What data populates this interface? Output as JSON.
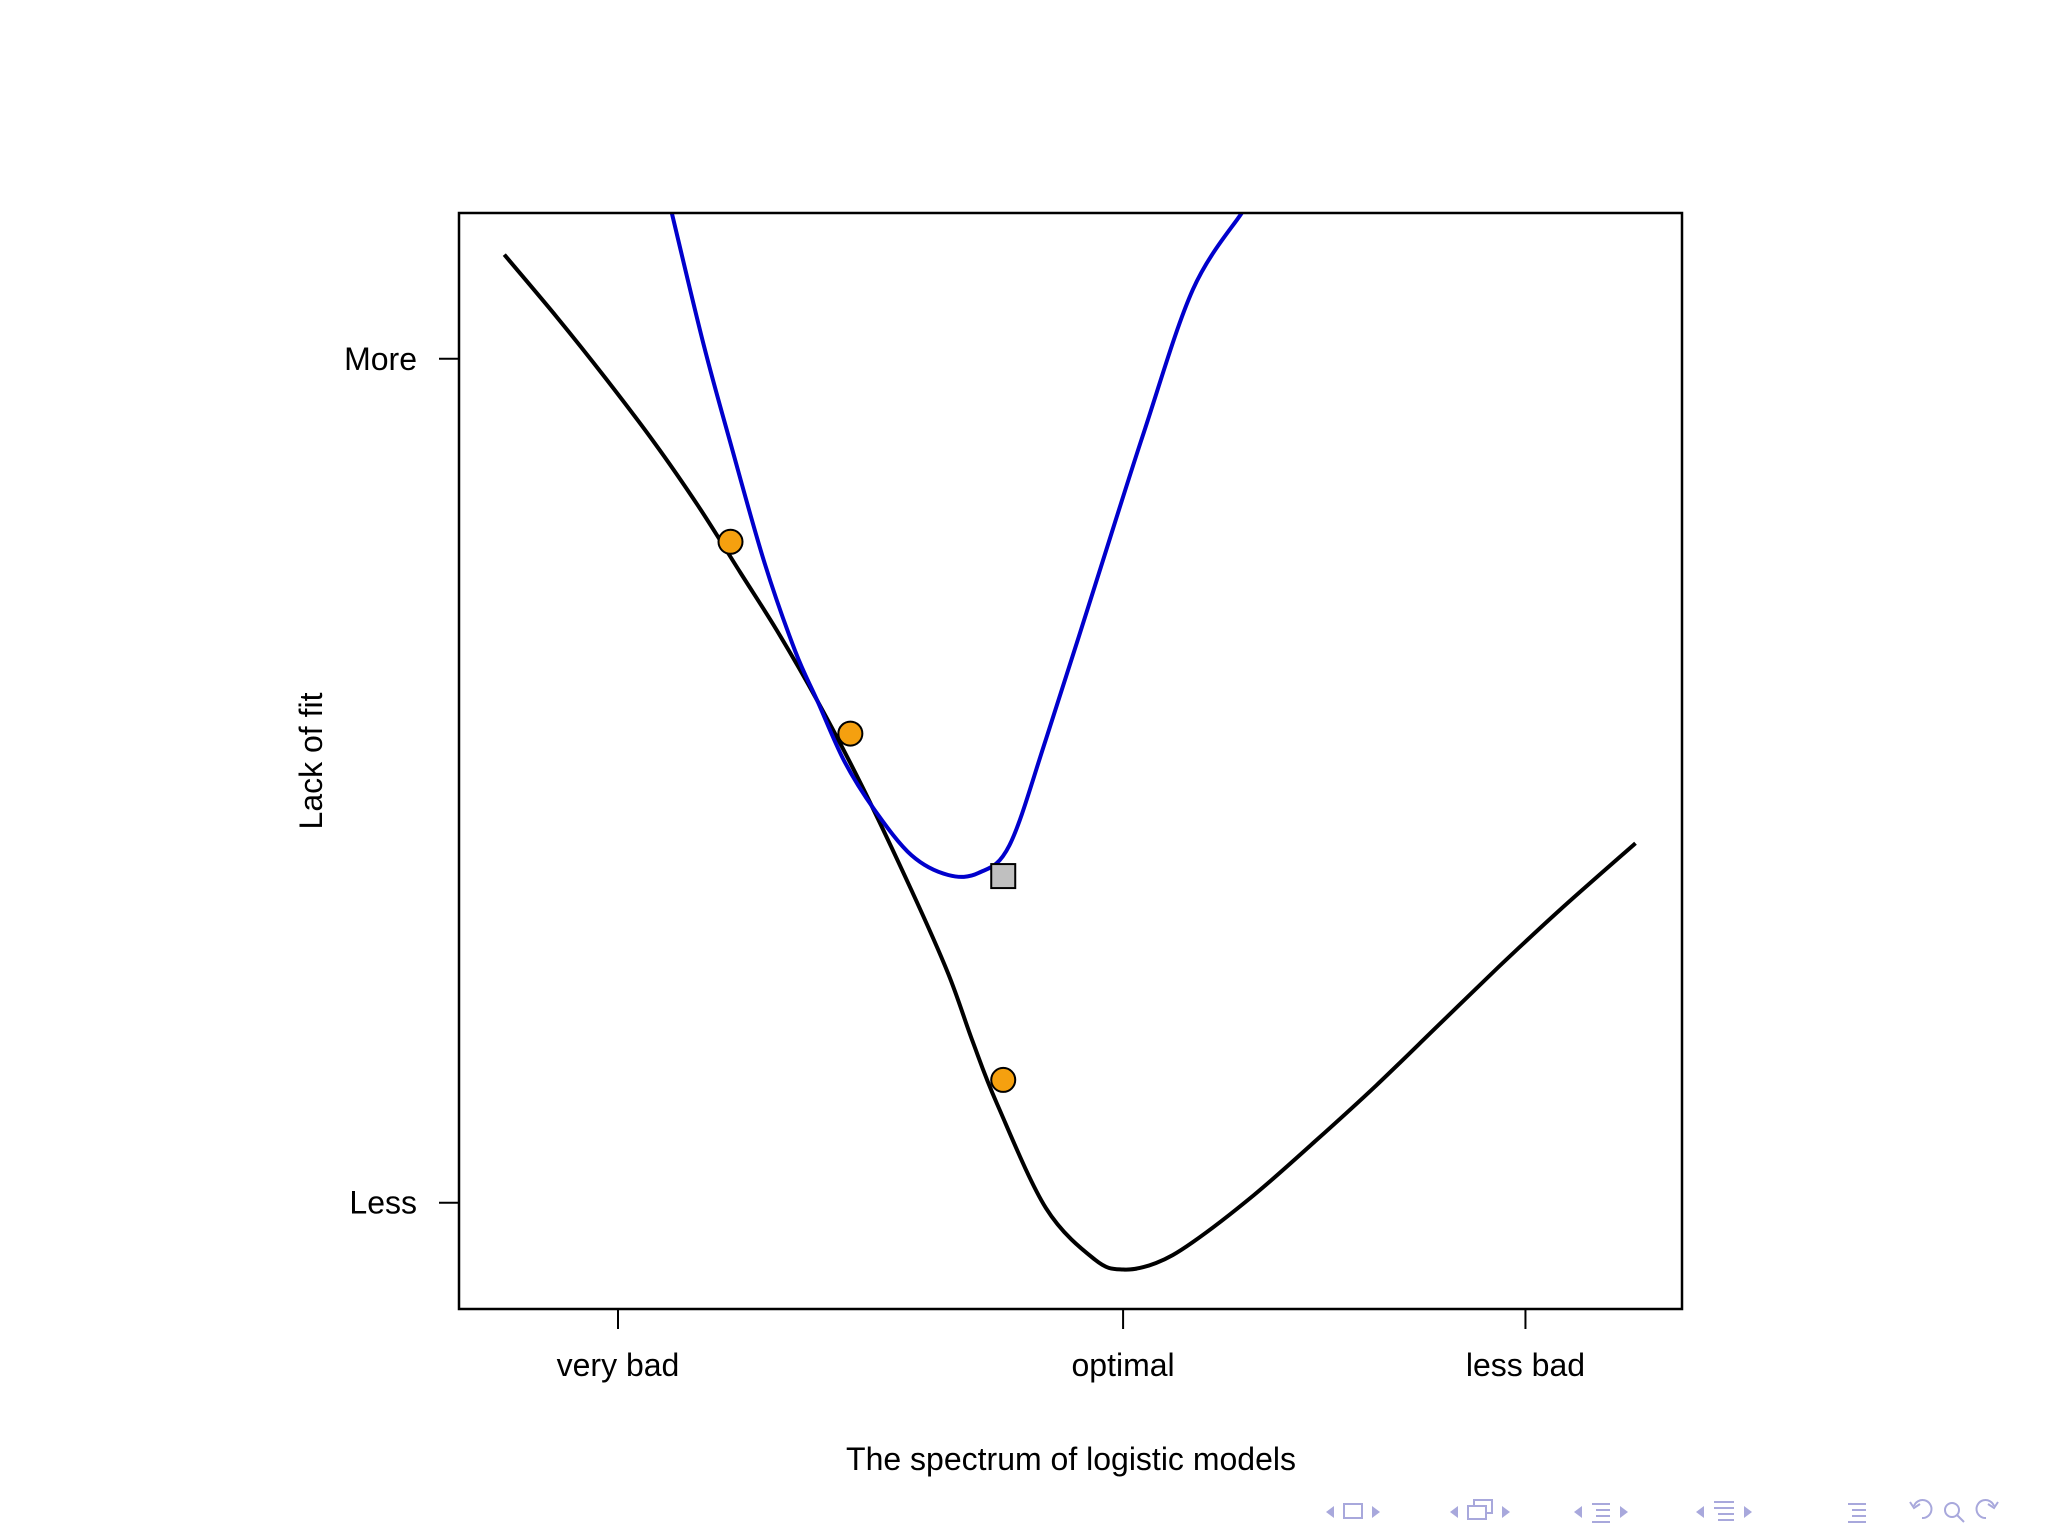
{
  "chart_data": {
    "type": "line",
    "title": "",
    "xlabel": "The spectrum of logistic models",
    "ylabel": "Lack of fit",
    "xlim": [
      0,
      100
    ],
    "ylim": [
      0,
      100
    ],
    "x_ticks": [
      {
        "value": 13,
        "label": "very bad"
      },
      {
        "value": 54.3,
        "label": "optimal"
      },
      {
        "value": 87.2,
        "label": "less bad"
      }
    ],
    "y_ticks": [
      {
        "value": 9.7,
        "label": "Less"
      },
      {
        "value": 86.7,
        "label": "More"
      }
    ],
    "grid": false,
    "series": [
      {
        "name": "",
        "color": "#000000",
        "x": [
          3.7,
          8,
          12,
          16,
          19.6,
          23,
          26,
          29.3,
          33,
          37,
          40,
          42,
          44,
          48,
          52,
          54.3,
          57,
          60,
          65,
          70,
          75,
          80,
          85,
          90,
          96.2
        ],
        "y": [
          96.2,
          90.5,
          84.9,
          79,
          73.2,
          67.2,
          61.9,
          55.5,
          47.6,
          38.2,
          30.6,
          24.4,
          18.7,
          9.2,
          4.5,
          3.6,
          4.2,
          6.1,
          10.4,
          15.3,
          20.4,
          25.8,
          31.2,
          36.4,
          42.5
        ]
      },
      {
        "name": "",
        "color": "#0000cc",
        "x": [
          17.4,
          20,
          22.2,
          25,
          27.5,
          29.3,
          31.5,
          34,
          37,
          40,
          42.5,
          45,
          48,
          52,
          56,
          60,
          64
        ],
        "y": [
          100,
          88,
          79,
          68,
          60,
          55.5,
          50,
          45.5,
          41.4,
          39.6,
          39.8,
          42.3,
          52,
          66,
          80,
          93,
          100
        ]
      }
    ],
    "markers": [
      {
        "shape": "circle",
        "color": "#f5a00f",
        "x": 22.2,
        "y": 70
      },
      {
        "shape": "circle",
        "color": "#f5a00f",
        "x": 32,
        "y": 52.5
      },
      {
        "shape": "circle",
        "color": "#f5a00f",
        "x": 44.5,
        "y": 20.9
      },
      {
        "shape": "square",
        "color": "#c0c0c0",
        "x": 44.5,
        "y": 39.5
      }
    ]
  },
  "colors": {
    "nav_glyph": "#a8a8dc"
  }
}
